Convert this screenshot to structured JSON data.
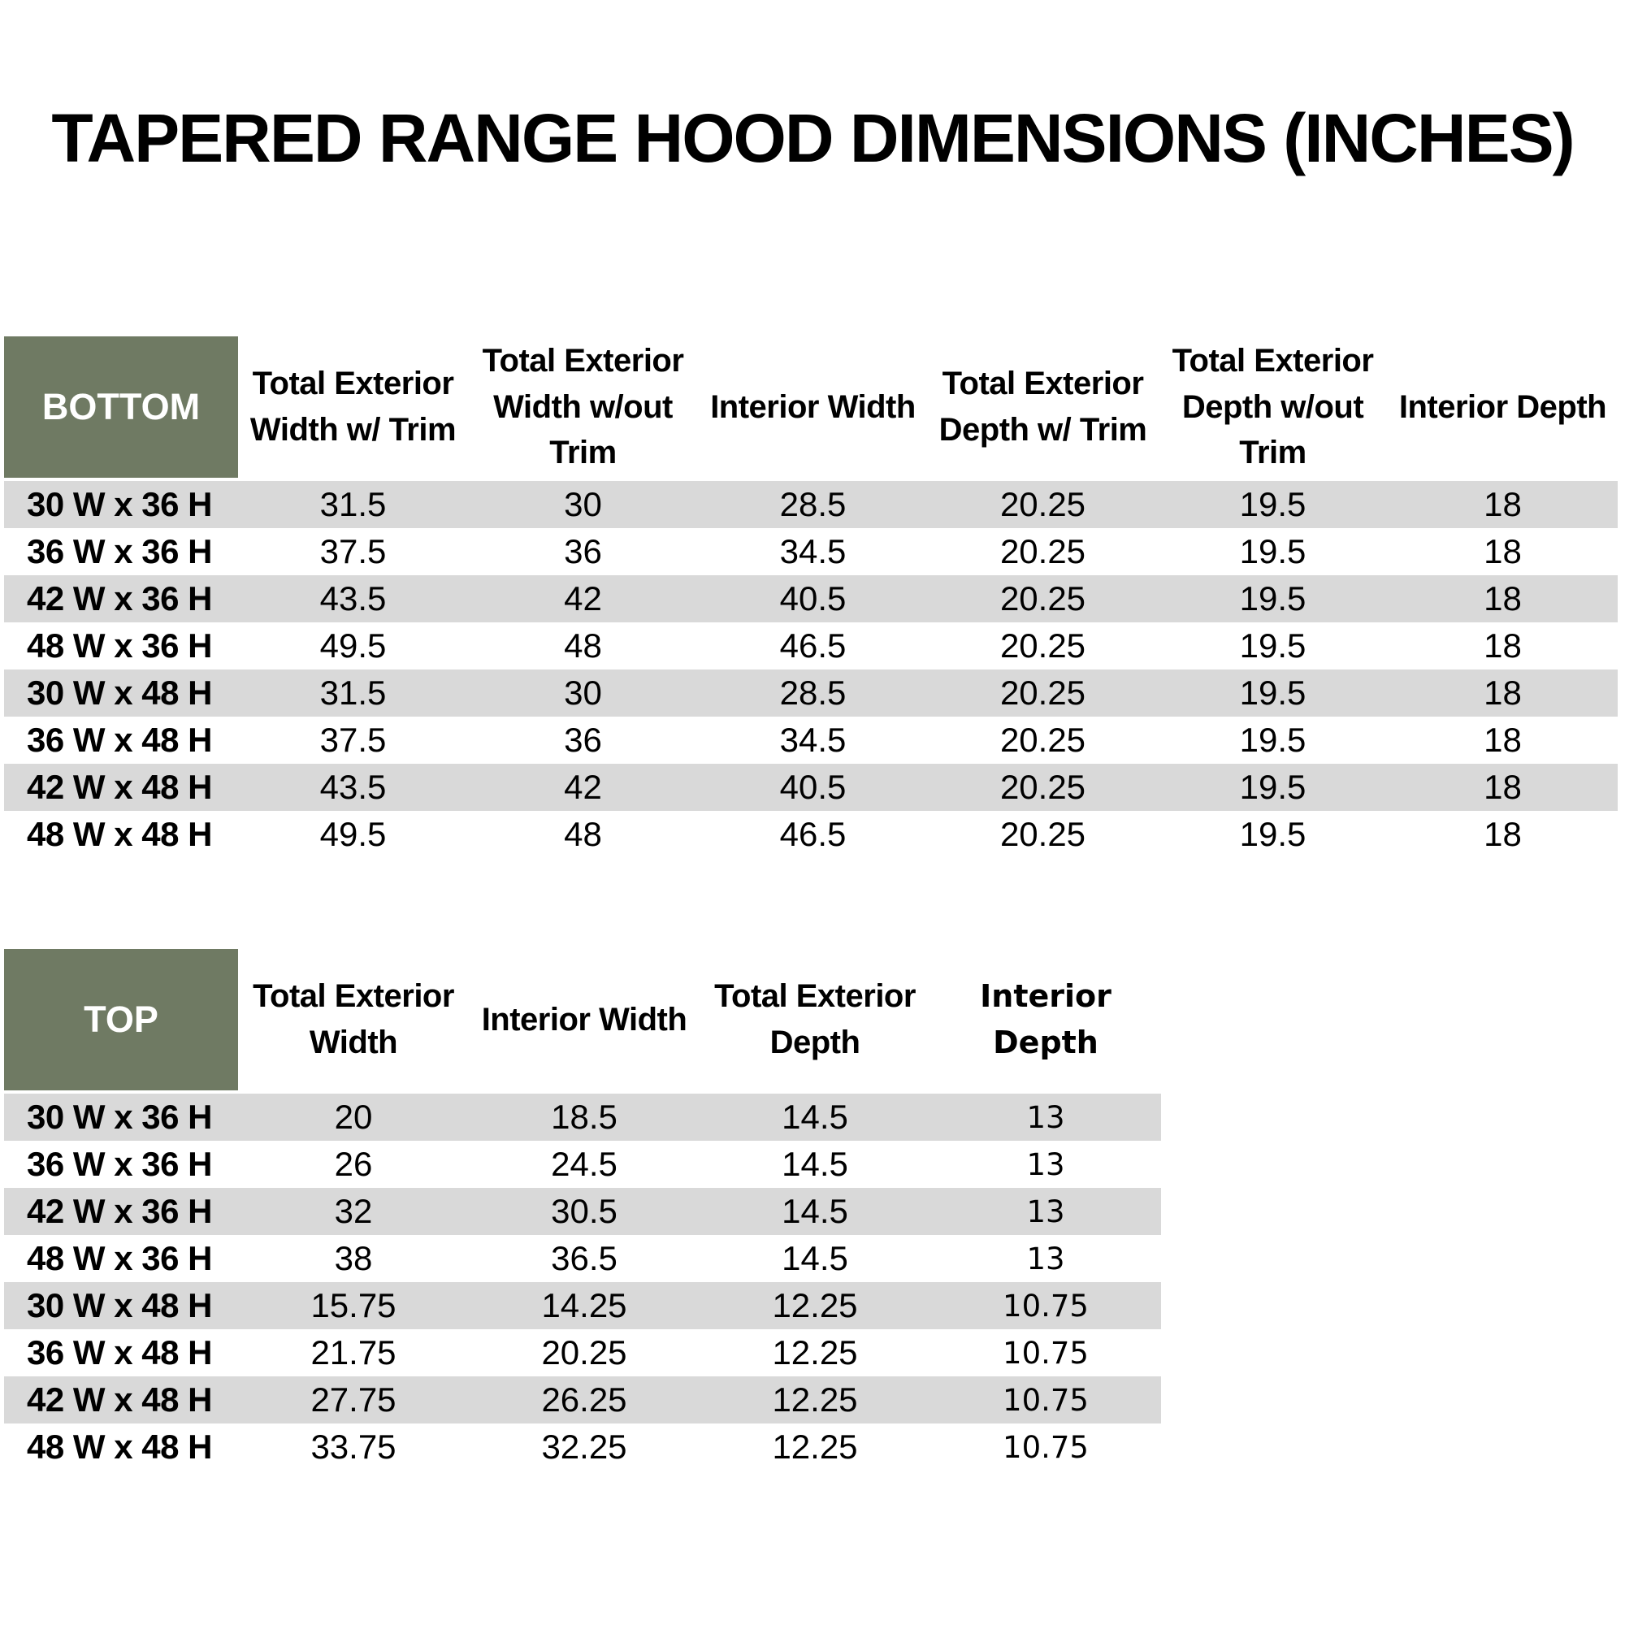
{
  "title": "TAPERED RANGE HOOD DIMENSIONS (INCHES)",
  "colors": {
    "corner_bg": "#6F7A63",
    "corner_text": "#FFFFFF",
    "row_stripe": "#D9D9D9",
    "page_bg": "#FFFFFF",
    "text": "#000000"
  },
  "bottom_table": {
    "corner_label": "BOTTOM",
    "columns": [
      "Total Exterior Width w/ Trim",
      "Total Exterior Width w/out Trim",
      "Interior Width",
      "Total Exterior Depth w/ Trim",
      "Total Exterior Depth w/out Trim",
      "Interior Depth"
    ],
    "rows": [
      {
        "size": "30 W x 36 H",
        "values": [
          "31.5",
          "30",
          "28.5",
          "20.25",
          "19.5",
          "18"
        ]
      },
      {
        "size": "36 W x 36 H",
        "values": [
          "37.5",
          "36",
          "34.5",
          "20.25",
          "19.5",
          "18"
        ]
      },
      {
        "size": "42 W x 36 H",
        "values": [
          "43.5",
          "42",
          "40.5",
          "20.25",
          "19.5",
          "18"
        ]
      },
      {
        "size": "48 W x 36 H",
        "values": [
          "49.5",
          "48",
          "46.5",
          "20.25",
          "19.5",
          "18"
        ]
      },
      {
        "size": "30 W x 48 H",
        "values": [
          "31.5",
          "30",
          "28.5",
          "20.25",
          "19.5",
          "18"
        ]
      },
      {
        "size": "36 W x 48 H",
        "values": [
          "37.5",
          "36",
          "34.5",
          "20.25",
          "19.5",
          "18"
        ]
      },
      {
        "size": "42 W x 48 H",
        "values": [
          "43.5",
          "42",
          "40.5",
          "20.25",
          "19.5",
          "18"
        ]
      },
      {
        "size": "48 W x 48 H",
        "values": [
          "49.5",
          "48",
          "46.5",
          "20.25",
          "19.5",
          "18"
        ]
      }
    ]
  },
  "top_table": {
    "corner_label": "TOP",
    "columns": [
      "Total Exterior Width",
      "Interior Width",
      "Total Exterior Depth",
      "Interior Depth"
    ],
    "rows": [
      {
        "size": "30 W x 36 H",
        "values": [
          "20",
          "18.5",
          "14.5",
          "13"
        ]
      },
      {
        "size": "36 W x 36 H",
        "values": [
          "26",
          "24.5",
          "14.5",
          "13"
        ]
      },
      {
        "size": "42 W x 36 H",
        "values": [
          "32",
          "30.5",
          "14.5",
          "13"
        ]
      },
      {
        "size": "48 W x 36 H",
        "values": [
          "38",
          "36.5",
          "14.5",
          "13"
        ]
      },
      {
        "size": "30 W x 48 H",
        "values": [
          "15.75",
          "14.25",
          "12.25",
          "10.75"
        ]
      },
      {
        "size": "36 W x 48 H",
        "values": [
          "21.75",
          "20.25",
          "12.25",
          "10.75"
        ]
      },
      {
        "size": "42 W x 48 H",
        "values": [
          "27.75",
          "26.25",
          "12.25",
          "10.75"
        ]
      },
      {
        "size": "48 W x 48 H",
        "values": [
          "33.75",
          "32.25",
          "12.25",
          "10.75"
        ]
      }
    ]
  }
}
